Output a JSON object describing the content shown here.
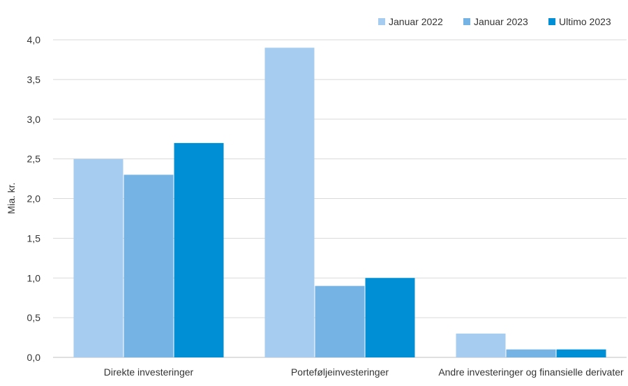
{
  "chart_data": {
    "type": "bar",
    "title": "",
    "xlabel": "",
    "ylabel": "Mia. kr.",
    "ylim": [
      0,
      4.0
    ],
    "yticks": [
      "0,0",
      "0,5",
      "1,0",
      "1,5",
      "2,0",
      "2,5",
      "3,0",
      "3,5",
      "4,0"
    ],
    "categories": [
      "Direkte investeringer",
      "Porteføljeinvesteringer",
      "Andre investeringer og finansielle derivater"
    ],
    "series": [
      {
        "name": "Januar 2022",
        "color": "#a6cdef",
        "values": [
          2.5,
          3.9,
          0.3
        ]
      },
      {
        "name": "Januar 2023",
        "color": "#74b3e3",
        "values": [
          2.3,
          0.9,
          0.1
        ]
      },
      {
        "name": "Ultimo 2023",
        "color": "#008fd5",
        "values": [
          2.7,
          1.0,
          0.1
        ]
      }
    ],
    "grid": true,
    "legend": "top-right"
  }
}
